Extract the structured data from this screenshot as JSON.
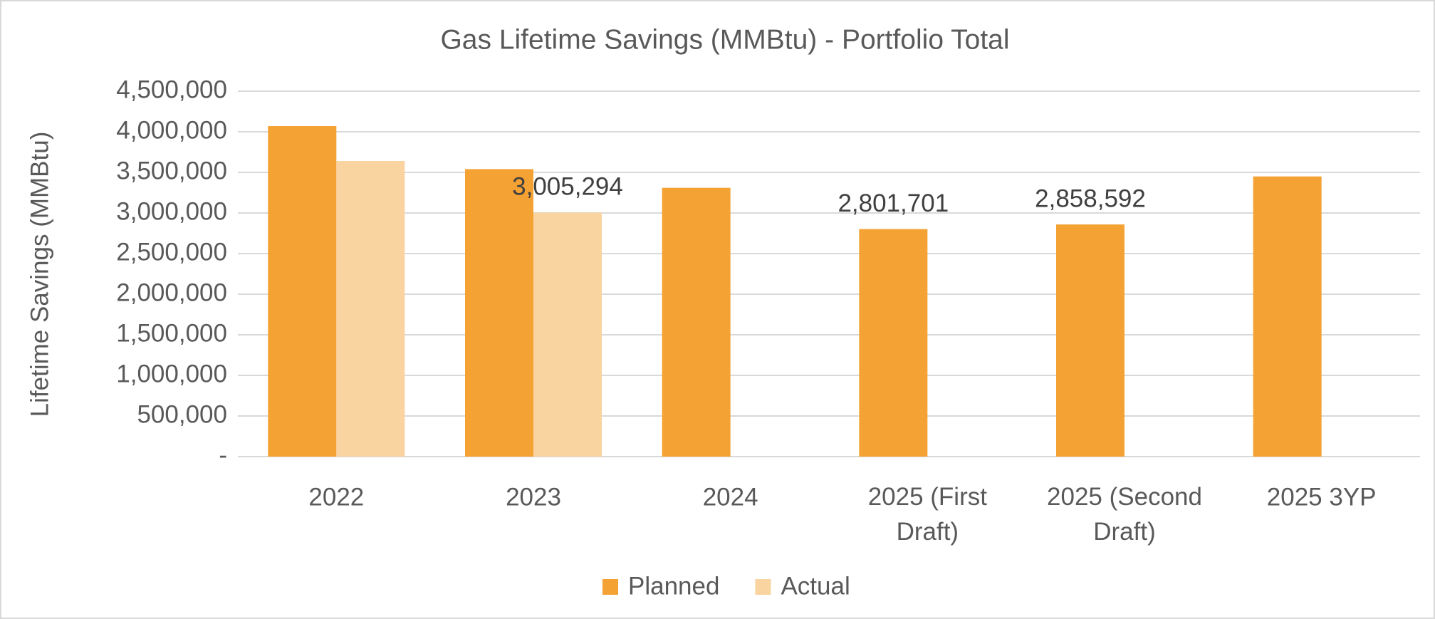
{
  "chart_data": {
    "type": "bar",
    "title": "Gas Lifetime Savings (MMBtu) - Portfolio Total",
    "y_label": "Lifetime Savings (MMBtu)",
    "categories": [
      "2022",
      "2023",
      "2024",
      "2025 (First Draft)",
      "2025 (Second Draft)",
      "2025 3YP"
    ],
    "series": [
      {
        "name": "Planned",
        "color": "#f4a233",
        "values": [
          4070000,
          3540000,
          3310000,
          2801701,
          2858592,
          3450000
        ],
        "value_labels": [
          null,
          null,
          null,
          "2,801,701",
          "2,858,592",
          null
        ]
      },
      {
        "name": "Actual",
        "color": "#f9d3a0",
        "values": [
          3640000,
          3005294,
          null,
          null,
          null,
          null
        ],
        "value_labels": [
          null,
          "3,005,294",
          null,
          null,
          null,
          null
        ]
      }
    ],
    "ylim": [
      0,
      4500000
    ],
    "yticks": [
      {
        "value": 0,
        "label": "-"
      },
      {
        "value": 500000,
        "label": "500,000"
      },
      {
        "value": 1000000,
        "label": "1,000,000"
      },
      {
        "value": 1500000,
        "label": "1,500,000"
      },
      {
        "value": 2000000,
        "label": "2,000,000"
      },
      {
        "value": 2500000,
        "label": "2,500,000"
      },
      {
        "value": 3000000,
        "label": "3,000,000"
      },
      {
        "value": 3500000,
        "label": "3,500,000"
      },
      {
        "value": 4000000,
        "label": "4,000,000"
      },
      {
        "value": 4500000,
        "label": "4,500,000"
      }
    ],
    "grid": true,
    "legend": "bottom"
  }
}
